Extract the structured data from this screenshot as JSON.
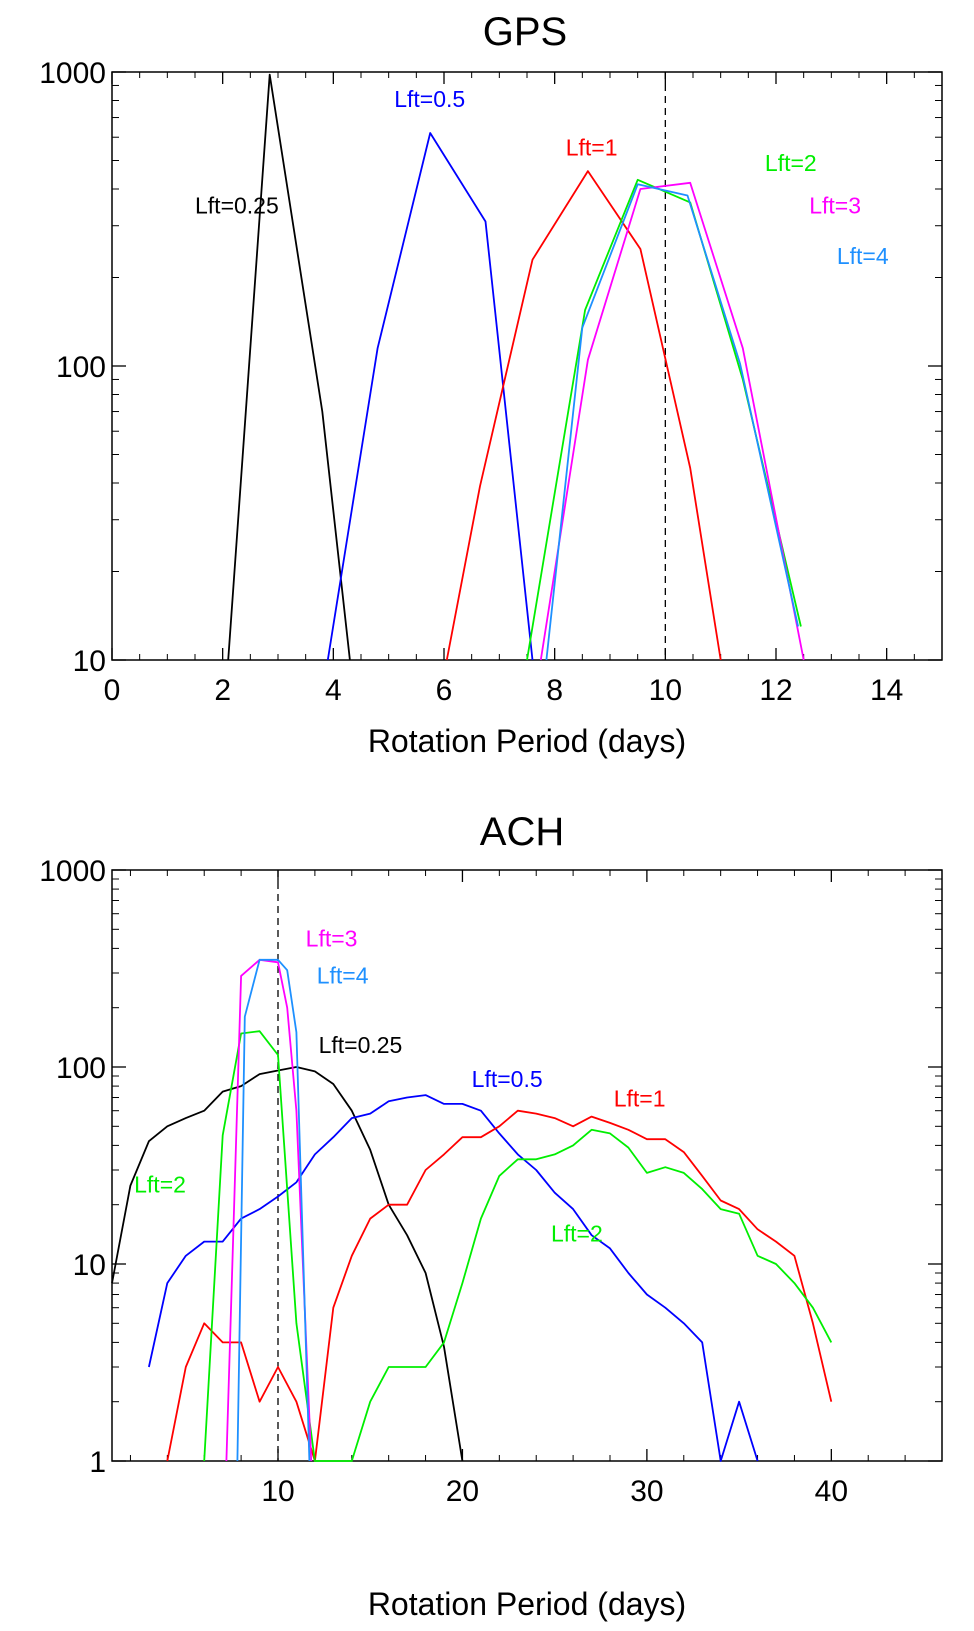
{
  "chart_data": [
    {
      "type": "line",
      "title": "GPS",
      "xlabel": "Rotation Period (days)",
      "ylabel": "",
      "yscale": "log",
      "xlim": [
        0,
        15
      ],
      "ylim": [
        10,
        1000
      ],
      "x_ticks": [
        "0",
        "2",
        "4",
        "6",
        "8",
        "10",
        "12",
        "14"
      ],
      "y_ticks": [
        "10",
        "100",
        "1000"
      ],
      "reference_line_x": 10,
      "series": [
        {
          "name": "Lft=0.25",
          "color": "#000000",
          "points": [
            [
              2.1,
              10
            ],
            [
              2.85,
              980
            ],
            [
              3.8,
              70
            ],
            [
              4.3,
              10
            ]
          ]
        },
        {
          "name": "Lft=0.5",
          "color": "#0000ff",
          "points": [
            [
              3.9,
              10
            ],
            [
              4.8,
              115
            ],
            [
              5.75,
              620
            ],
            [
              6.75,
              310
            ],
            [
              7.6,
              10
            ]
          ]
        },
        {
          "name": "Lft=1",
          "color": "#ff0000",
          "points": [
            [
              6.05,
              10
            ],
            [
              6.65,
              39
            ],
            [
              7.6,
              230
            ],
            [
              8.6,
              460
            ],
            [
              9.55,
              250
            ],
            [
              10.45,
              45
            ],
            [
              11.0,
              10
            ]
          ]
        },
        {
          "name": "Lft=2",
          "color": "#00ee00",
          "points": [
            [
              7.5,
              10
            ],
            [
              8.55,
              155
            ],
            [
              9.5,
              430
            ],
            [
              10.45,
              360
            ],
            [
              11.4,
              90
            ],
            [
              12.45,
              13
            ]
          ]
        },
        {
          "name": "Lft=3",
          "color": "#ff00ff",
          "points": [
            [
              7.75,
              10
            ],
            [
              8.6,
              105
            ],
            [
              9.55,
              400
            ],
            [
              10.45,
              420
            ],
            [
              11.4,
              115
            ],
            [
              12.5,
              10
            ]
          ]
        },
        {
          "name": "Lft=4",
          "color": "#1e90ff",
          "points": [
            [
              7.85,
              10
            ],
            [
              8.5,
              135
            ],
            [
              9.5,
              415
            ],
            [
              10.4,
              380
            ],
            [
              11.35,
              102
            ],
            [
              12.4,
              13
            ]
          ]
        }
      ],
      "labels": [
        {
          "text": "Lft=0.25",
          "color": "#000000",
          "x": 1.5,
          "y": 330
        },
        {
          "text": "Lft=0.5",
          "color": "#0000ff",
          "x": 5.1,
          "y": 760
        },
        {
          "text": "Lft=1",
          "color": "#ff0000",
          "x": 8.2,
          "y": 520
        },
        {
          "text": "Lft=2",
          "color": "#00ee00",
          "x": 11.8,
          "y": 460
        },
        {
          "text": "Lft=3",
          "color": "#ff00ff",
          "x": 12.6,
          "y": 330
        },
        {
          "text": "Lft=4",
          "color": "#1e90ff",
          "x": 13.1,
          "y": 222
        }
      ]
    },
    {
      "type": "line",
      "title": "ACH",
      "xlabel": "Rotation Period (days)",
      "ylabel": "",
      "yscale": "log",
      "xlim": [
        1,
        46
      ],
      "ylim": [
        1,
        1000
      ],
      "x_ticks": [
        "10",
        "20",
        "30",
        "40"
      ],
      "x_tick_values": [
        10,
        20,
        30,
        40
      ],
      "y_ticks": [
        "1",
        "10",
        "100",
        "1000"
      ],
      "reference_line_x": 10,
      "series": [
        {
          "name": "Lft=0.25",
          "color": "#000000",
          "points": [
            [
              1,
              8
            ],
            [
              2,
              25
            ],
            [
              3,
              42
            ],
            [
              4,
              50
            ],
            [
              5,
              55
            ],
            [
              6,
              60
            ],
            [
              7,
              75
            ],
            [
              8,
              80
            ],
            [
              9,
              92
            ],
            [
              10,
              96
            ],
            [
              11,
              100
            ],
            [
              12,
              95
            ],
            [
              13,
              82
            ],
            [
              14,
              60
            ],
            [
              15,
              38
            ],
            [
              16,
              20
            ],
            [
              17,
              14
            ],
            [
              18,
              9
            ],
            [
              19,
              3.8
            ],
            [
              20,
              1
            ]
          ]
        },
        {
          "name": "Lft=0.5",
          "color": "#0000ff",
          "points": [
            [
              3,
              3
            ],
            [
              4,
              8
            ],
            [
              5,
              11
            ],
            [
              6,
              13
            ],
            [
              7,
              13
            ],
            [
              8,
              17
            ],
            [
              9,
              19
            ],
            [
              10,
              22
            ],
            [
              11,
              26
            ],
            [
              12,
              36
            ],
            [
              13,
              44
            ],
            [
              14,
              55
            ],
            [
              15,
              58
            ],
            [
              16,
              67
            ],
            [
              17,
              70
            ],
            [
              18,
              72
            ],
            [
              19,
              65
            ],
            [
              20,
              65
            ],
            [
              21,
              60
            ],
            [
              22,
              46
            ],
            [
              23,
              36
            ],
            [
              24,
              30
            ],
            [
              25,
              23
            ],
            [
              26,
              19
            ],
            [
              27,
              14
            ],
            [
              28,
              12
            ],
            [
              29,
              9
            ],
            [
              30,
              7
            ],
            [
              31,
              6
            ],
            [
              32,
              5
            ],
            [
              33,
              4
            ],
            [
              34,
              1
            ],
            [
              35,
              2
            ],
            [
              36,
              1
            ]
          ]
        },
        {
          "name": "Lft=1",
          "color": "#ff0000",
          "points": [
            [
              4,
              1
            ],
            [
              5,
              3
            ],
            [
              6,
              5
            ],
            [
              7,
              4
            ],
            [
              8,
              4
            ],
            [
              9,
              2
            ],
            [
              10,
              3
            ],
            [
              11,
              2
            ],
            [
              12,
              1
            ],
            [
              13,
              6
            ],
            [
              14,
              11
            ],
            [
              15,
              17
            ],
            [
              16,
              20
            ],
            [
              17,
              20
            ],
            [
              18,
              30
            ],
            [
              19,
              36
            ],
            [
              20,
              44
            ],
            [
              21,
              44
            ],
            [
              22,
              50
            ],
            [
              23,
              60
            ],
            [
              24,
              58
            ],
            [
              25,
              55
            ],
            [
              26,
              50
            ],
            [
              27,
              56
            ],
            [
              28,
              52
            ],
            [
              29,
              48
            ],
            [
              30,
              43
            ],
            [
              31,
              43
            ],
            [
              32,
              37
            ],
            [
              33,
              28
            ],
            [
              34,
              21
            ],
            [
              35,
              19
            ],
            [
              36,
              15
            ],
            [
              37,
              13
            ],
            [
              38,
              11
            ],
            [
              39,
              5
            ],
            [
              40,
              2
            ]
          ]
        },
        {
          "name": "Lft=2",
          "color": "#00ee00",
          "points": [
            [
              6,
              1
            ],
            [
              7,
              45
            ],
            [
              8,
              148
            ],
            [
              9,
              152
            ],
            [
              10,
              115
            ],
            [
              11,
              5
            ],
            [
              12,
              1
            ],
            [
              13,
              1
            ],
            [
              14,
              1
            ],
            [
              15,
              2
            ],
            [
              16,
              3
            ],
            [
              17,
              3
            ],
            [
              18,
              3
            ],
            [
              19,
              4
            ],
            [
              20,
              8
            ],
            [
              21,
              17
            ],
            [
              22,
              28
            ],
            [
              23,
              34
            ],
            [
              24,
              34
            ],
            [
              25,
              36
            ],
            [
              26,
              40
            ],
            [
              27,
              48
            ],
            [
              28,
              46
            ],
            [
              29,
              39
            ],
            [
              30,
              29
            ],
            [
              31,
              31
            ],
            [
              32,
              29
            ],
            [
              33,
              24
            ],
            [
              34,
              19
            ],
            [
              35,
              18
            ],
            [
              36,
              11
            ],
            [
              37,
              10
            ],
            [
              38,
              8
            ],
            [
              39,
              6
            ],
            [
              40,
              4
            ]
          ]
        },
        {
          "name": "Lft=3",
          "color": "#ff00ff",
          "points": [
            [
              7.2,
              1
            ],
            [
              8,
              290
            ],
            [
              9,
              350
            ],
            [
              10,
              340
            ],
            [
              10.5,
              200
            ],
            [
              11,
              60
            ],
            [
              11.8,
              1
            ]
          ]
        },
        {
          "name": "Lft=4",
          "color": "#1e90ff",
          "points": [
            [
              7.8,
              1
            ],
            [
              8.2,
              180
            ],
            [
              9,
              350
            ],
            [
              10,
              350
            ],
            [
              10.5,
              310
            ],
            [
              11,
              150
            ],
            [
              11.7,
              1
            ]
          ]
        }
      ],
      "labels": [
        {
          "text": "Lft=3",
          "color": "#ff00ff",
          "x": 11.5,
          "y": 410
        },
        {
          "text": "Lft=4",
          "color": "#1e90ff",
          "x": 12.1,
          "y": 265
        },
        {
          "text": "Lft=0.25",
          "color": "#000000",
          "x": 12.2,
          "y": 118
        },
        {
          "text": "Lft=0.5",
          "color": "#0000ff",
          "x": 20.5,
          "y": 79
        },
        {
          "text": "Lft=1",
          "color": "#ff0000",
          "x": 28.2,
          "y": 63
        },
        {
          "text": "Lft=2",
          "color": "#00ee00",
          "x": 2.2,
          "y": 23
        },
        {
          "text": "Lft=2",
          "color": "#00ee00",
          "x": 24.8,
          "y": 13
        }
      ]
    }
  ]
}
